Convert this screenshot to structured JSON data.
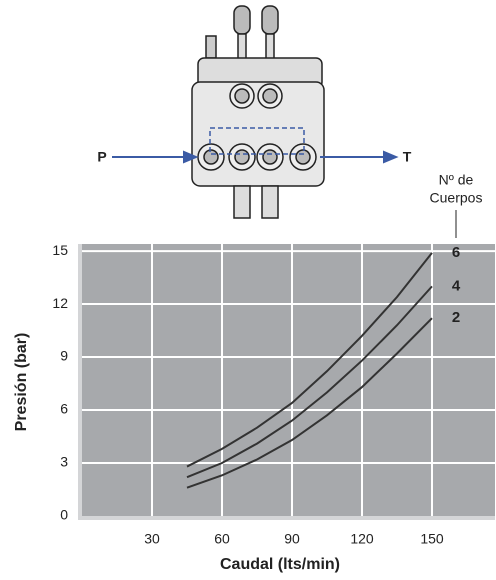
{
  "chart_data": {
    "type": "line",
    "x_label": "Caudal (lts/min)",
    "y_label": "Presión (bar)",
    "inlet_label": "P",
    "outlet_label": "T",
    "annotation": [
      "Nº de",
      "Cuerpos"
    ],
    "x": [
      45,
      60,
      75,
      90,
      105,
      120,
      135,
      150
    ],
    "series": [
      {
        "name": "6",
        "color": "#333333",
        "values": [
          2.8,
          3.8,
          5.0,
          6.4,
          8.2,
          10.2,
          12.4,
          14.9
        ]
      },
      {
        "name": "4",
        "color": "#333333",
        "values": [
          2.2,
          3.0,
          4.1,
          5.4,
          7.0,
          8.8,
          10.8,
          13.0
        ]
      },
      {
        "name": "2",
        "color": "#333333",
        "values": [
          1.6,
          2.3,
          3.2,
          4.3,
          5.7,
          7.3,
          9.2,
          11.2
        ]
      }
    ],
    "xlim": [
      0,
      177
    ],
    "ylim": [
      0,
      15.4
    ],
    "xticks": [
      30,
      60,
      90,
      120,
      150
    ],
    "yticks": [
      0,
      3,
      6,
      9,
      12,
      15
    ],
    "grid": true,
    "plot_color": "#a7a9ac"
  }
}
